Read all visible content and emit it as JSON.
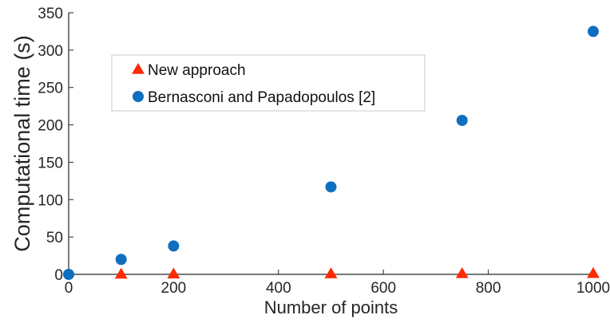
{
  "chart_data": {
    "type": "scatter",
    "title": "",
    "xlabel": "Number of points",
    "ylabel": "Computational time (s)",
    "xlim": [
      0,
      1000
    ],
    "ylim": [
      0,
      350
    ],
    "xticks": [
      "0",
      "200",
      "400",
      "600",
      "800",
      "1000"
    ],
    "yticks": [
      "0",
      "50",
      "100",
      "150",
      "200",
      "250",
      "300",
      "350"
    ],
    "grid": false,
    "legend_position": "upper-left",
    "series": [
      {
        "name": "New approach",
        "marker": "triangle",
        "color": "#ff2a00",
        "points": [
          {
            "x": 100,
            "y": 0.3
          },
          {
            "x": 200,
            "y": 0.5
          },
          {
            "x": 500,
            "y": 0.8
          },
          {
            "x": 750,
            "y": 1.0
          },
          {
            "x": 1000,
            "y": 1.2
          }
        ]
      },
      {
        "name": "Bernasconi and Papadopoulos [2]",
        "marker": "circle",
        "color": "#0f6fbf",
        "points": [
          {
            "x": 0,
            "y": 0
          },
          {
            "x": 100,
            "y": 20
          },
          {
            "x": 200,
            "y": 38
          },
          {
            "x": 500,
            "y": 117
          },
          {
            "x": 750,
            "y": 206
          },
          {
            "x": 1000,
            "y": 325
          }
        ]
      }
    ]
  }
}
